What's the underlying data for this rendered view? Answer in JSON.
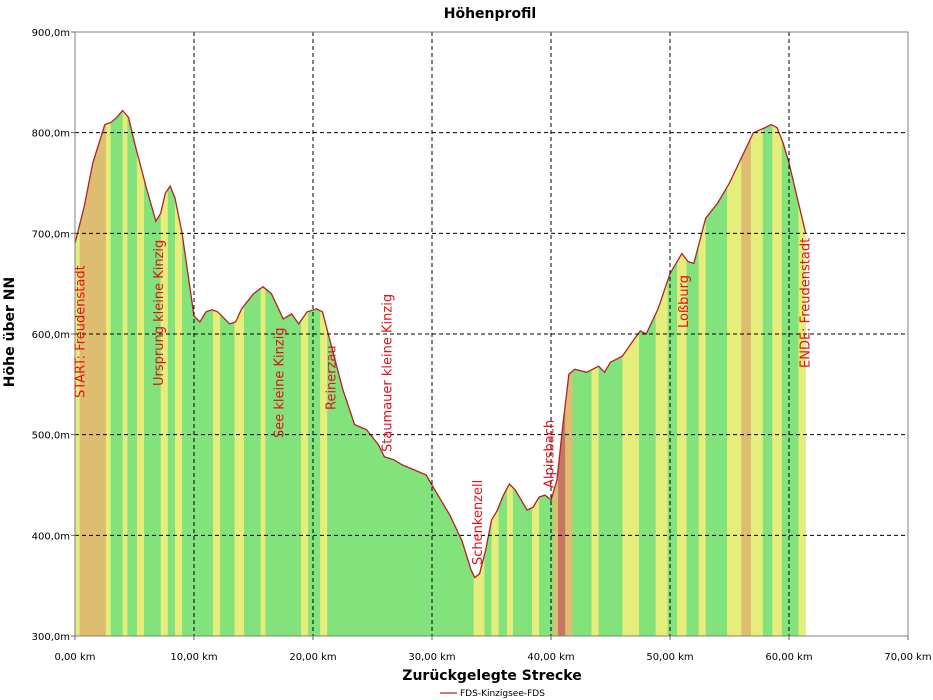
{
  "chart_data": {
    "type": "area",
    "title": "Höhenprofil",
    "xlabel": "Zurückgelegte Strecke",
    "ylabel": "Höhe über NN",
    "xlim": [
      0,
      70
    ],
    "ylim": [
      300,
      900
    ],
    "x_ticks": [
      0,
      10,
      20,
      30,
      40,
      50,
      60,
      70
    ],
    "x_tick_labels": [
      "0,00 km",
      "10,00 km",
      "20,00 km",
      "30,00 km",
      "40,00 km",
      "50,00 km",
      "60,00 km",
      "70,00 km"
    ],
    "y_ticks": [
      300,
      400,
      500,
      600,
      700,
      800,
      900
    ],
    "y_tick_labels": [
      "300,0m",
      "400,0m",
      "500,0m",
      "600,0m",
      "700,0m",
      "800,0m",
      "900,0m"
    ],
    "grid": true,
    "legend": "bottom-center",
    "series": [
      {
        "name": "FDS-Kinzigsee-FDS",
        "color": "#b22222",
        "x": [
          0,
          0.8,
          1.5,
          2.5,
          3.0,
          3.5,
          4.0,
          4.5,
          5.0,
          6.0,
          6.8,
          7.2,
          7.6,
          8.0,
          8.4,
          9.0,
          10.0,
          10.5,
          11.0,
          11.5,
          12.0,
          13.0,
          13.5,
          14.0,
          15.0,
          15.8,
          16.5,
          17.5,
          18.2,
          18.8,
          19.5,
          20.3,
          20.8,
          21.5,
          22.5,
          23.5,
          24.5,
          25.5,
          26.0,
          26.8,
          27.5,
          28.5,
          29.5,
          30.5,
          31.5,
          32.5,
          33.3,
          33.6,
          34.0,
          34.5,
          35.0,
          35.5,
          36.0,
          36.5,
          37.0,
          38.0,
          38.5,
          39.0,
          39.5,
          40.0,
          40.5,
          41.0,
          41.5,
          42.0,
          43.0,
          44.0,
          44.5,
          45.0,
          46.0,
          47.0,
          47.5,
          48.0,
          49.0,
          50.0,
          51.0,
          51.5,
          52.0,
          53.0,
          54.0,
          55.0,
          56.0,
          57.0,
          58.0,
          58.5,
          59.0,
          59.5,
          60.0,
          61.0,
          61.4
        ],
        "values": [
          690,
          728,
          770,
          808,
          810,
          815,
          822,
          815,
          790,
          745,
          712,
          720,
          740,
          747,
          735,
          700,
          618,
          612,
          622,
          624,
          622,
          610,
          612,
          625,
          640,
          647,
          640,
          615,
          620,
          610,
          622,
          625,
          622,
          590,
          545,
          510,
          505,
          490,
          478,
          475,
          470,
          465,
          460,
          440,
          420,
          395,
          365,
          358,
          362,
          385,
          415,
          425,
          440,
          451,
          445,
          425,
          428,
          438,
          440,
          435,
          455,
          510,
          560,
          565,
          562,
          568,
          562,
          572,
          578,
          595,
          603,
          600,
          625,
          660,
          680,
          672,
          670,
          715,
          730,
          750,
          775,
          800,
          805,
          808,
          805,
          790,
          770,
          720,
          700
        ]
      }
    ],
    "annotations": [
      {
        "label": "START: Freudenstadt",
        "x": 0.3
      },
      {
        "label": "Ursprung kleine Kinzig",
        "x": 6.9
      },
      {
        "label": "See kleine Kinzig",
        "x": 17.0
      },
      {
        "label": "Reinerzau",
        "x": 21.4
      },
      {
        "label": "Staumauer kleine Kinzig",
        "x": 26.1
      },
      {
        "label": "Schenkenzell",
        "x": 33.7
      },
      {
        "label": "Alpirsbach",
        "x": 39.7
      },
      {
        "label": "Loßburg",
        "x": 51.0
      },
      {
        "label": "ENDE: Freudenstadt",
        "x": 61.2
      }
    ],
    "background_colors": {
      "green": "#82e27c",
      "yellow": "#f2ee7a",
      "orange": "#e8b870",
      "red": "#cf6a62"
    }
  }
}
